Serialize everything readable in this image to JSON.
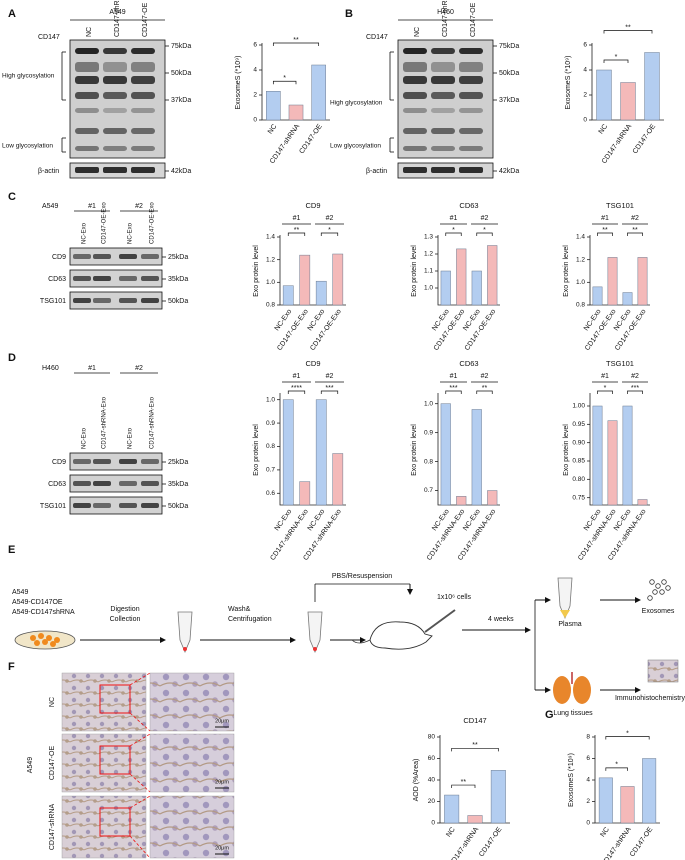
{
  "panel_labels": [
    "A",
    "B",
    "C",
    "D",
    "E",
    "F",
    "G"
  ],
  "blot_a": {
    "cell_line": "A549",
    "protein": "CD147",
    "lanes": [
      "NC",
      "CD147-shRNA",
      "CD147-OE"
    ],
    "markers": [
      "75kDa",
      "50kDa",
      "37kDa"
    ],
    "bands": [
      "High glycosylation",
      "Low glycosylation"
    ],
    "control": "β-actin",
    "control_marker": "42kDa"
  },
  "blot_b": {
    "cell_line": "H460",
    "protein": "CD147",
    "lanes": [
      "NC",
      "CD147-shRNA",
      "CD147-OE"
    ],
    "markers": [
      "75kDa",
      "50kDa",
      "37kDa"
    ],
    "bands": [
      "High glycosylation",
      "Low glycosylation"
    ],
    "control": "β-actin",
    "control_marker": "42kDa"
  },
  "blot_c": {
    "cell_line": "A549",
    "groups": [
      "#1",
      "#2"
    ],
    "lanes": [
      "NC-Exo",
      "CD147-OE-Exo",
      "NC-Exo",
      "CD147-OE-Exo"
    ],
    "rows": [
      {
        "protein": "CD9",
        "marker": "25kDa"
      },
      {
        "protein": "CD63",
        "marker": "35kDa"
      },
      {
        "protein": "TSG101",
        "marker": "50kDa"
      }
    ]
  },
  "blot_d": {
    "cell_line": "H460",
    "groups": [
      "#1",
      "#2"
    ],
    "lanes": [
      "NC-Exo",
      "CD147-shRNA-Exo",
      "NC-Exo",
      "CD147-shRNA-Exo"
    ],
    "rows": [
      {
        "protein": "CD9",
        "marker": "25kDa"
      },
      {
        "protein": "CD63",
        "marker": "35kDa"
      },
      {
        "protein": "TSG101",
        "marker": "50kDa"
      }
    ]
  },
  "schematic": {
    "cell_lines": [
      "A549",
      "A549-CD147OE",
      "A549-CD147shRNA"
    ],
    "steps": [
      [
        "Digestion",
        "Collection"
      ],
      [
        "Wash&",
        "Centrifugation"
      ],
      [
        "PBS/Resuspension"
      ],
      [
        "1x10⁶ cells"
      ],
      [
        "4 weeks"
      ]
    ],
    "samples": [
      "Plasma",
      "Lung tissues"
    ],
    "outputs": [
      "Exosomes",
      "Immunohistochemistry"
    ]
  },
  "ihc": {
    "cell_line": "A549",
    "groups": [
      "NC",
      "CD147-OE",
      "CD147-shRNA"
    ],
    "scale_bars": [
      "20μm",
      "20μm",
      "20μm"
    ]
  },
  "chart_data": [
    {
      "type": "bar",
      "ylabel": "ExosomeS (*10⁹)",
      "categories": [
        "NC",
        "CD147-shRNA",
        "CD147-OE"
      ],
      "values": [
        2.3,
        1.2,
        4.4
      ],
      "colors": [
        "#b3cdf0",
        "#f4b9b9",
        "#b3cdf0"
      ],
      "ylim": [
        0,
        6
      ],
      "yticks": [
        0,
        2,
        4,
        6
      ],
      "significance": [
        {
          "from": 0,
          "to": 1,
          "label": "*"
        },
        {
          "from": 0,
          "to": 2,
          "label": "**"
        }
      ]
    },
    {
      "type": "bar",
      "ylabel": "ExosomeS (*10⁹)",
      "categories": [
        "NC",
        "CD147-shRNA",
        "CD147-OE"
      ],
      "values": [
        4.0,
        3.0,
        5.4
      ],
      "colors": [
        "#b3cdf0",
        "#f4b9b9",
        "#b3cdf0"
      ],
      "ylim": [
        0,
        6
      ],
      "yticks": [
        0,
        2,
        4,
        6
      ],
      "significance": [
        {
          "from": 0,
          "to": 1,
          "label": "*"
        },
        {
          "from": 0,
          "to": 2,
          "label": "**"
        }
      ]
    },
    {
      "type": "bar",
      "title": "CD9",
      "ylabel": "Exo protein level",
      "groups": [
        "#1",
        "#2"
      ],
      "categories": [
        "NC-Exo",
        "CD147-OE-Exo",
        "NC-Exo",
        "CD147-OE-Exo"
      ],
      "values": [
        0.97,
        1.24,
        1.01,
        1.25
      ],
      "colors": [
        "#b3cdf0",
        "#f4b9b9",
        "#b3cdf0",
        "#f4b9b9"
      ],
      "ylim": [
        0.8,
        1.4
      ],
      "yticks": [
        0.8,
        {
          "value": 1,
          "label": "1.0"
        },
        1.2,
        1.4
      ],
      "significance": [
        {
          "from": 0,
          "to": 1,
          "label": "**"
        },
        {
          "from": 2,
          "to": 3,
          "label": "*"
        }
      ]
    },
    {
      "type": "bar",
      "title": "CD63",
      "ylabel": "Exo protein level",
      "groups": [
        "#1",
        "#2"
      ],
      "categories": [
        "NC-Exo",
        "CD147-OE-Exo",
        "NC-Exo",
        "CD147-OE-Exo"
      ],
      "values": [
        1.1,
        1.23,
        1.1,
        1.25
      ],
      "colors": [
        "#b3cdf0",
        "#f4b9b9",
        "#b3cdf0",
        "#f4b9b9"
      ],
      "ylim": [
        0.9,
        1.3
      ],
      "yticks": [
        {
          "value": 1,
          "label": "1.0"
        },
        1.1,
        1.2,
        1.3
      ],
      "significance": [
        {
          "from": 0,
          "to": 1,
          "label": "*"
        },
        {
          "from": 2,
          "to": 3,
          "label": "*"
        }
      ]
    },
    {
      "type": "bar",
      "title": "TSG101",
      "ylabel": "Exo protein level",
      "groups": [
        "#1",
        "#2"
      ],
      "categories": [
        "NC-Exo",
        "CD147-OE-Exo",
        "NC-Exo",
        "CD147-OE-Exo"
      ],
      "values": [
        0.96,
        1.22,
        0.91,
        1.22
      ],
      "colors": [
        "#b3cdf0",
        "#f4b9b9",
        "#b3cdf0",
        "#f4b9b9"
      ],
      "ylim": [
        0.8,
        1.4
      ],
      "yticks": [
        0.8,
        {
          "value": 1,
          "label": "1.0"
        },
        1.2,
        1.4
      ],
      "significance": [
        {
          "from": 0,
          "to": 1,
          "label": "**"
        },
        {
          "from": 2,
          "to": 3,
          "label": "**"
        }
      ]
    },
    {
      "type": "bar",
      "title": "CD9",
      "ylabel": "Exo protein level",
      "groups": [
        "#1",
        "#2"
      ],
      "categories": [
        "NC-Exo",
        "CD147-shRNA-Exo",
        "NC-Exo",
        "CD147-shRNA-Exo"
      ],
      "values": [
        1.0,
        0.65,
        1.0,
        0.77
      ],
      "colors": [
        "#b3cdf0",
        "#f4b9b9",
        "#b3cdf0",
        "#f4b9b9"
      ],
      "ylim": [
        0.55,
        1.02
      ],
      "yticks": [
        0.6,
        0.7,
        0.8,
        0.9,
        {
          "value": 1,
          "label": "1.0"
        }
      ],
      "significance": [
        {
          "from": 0,
          "to": 1,
          "label": "****"
        },
        {
          "from": 2,
          "to": 3,
          "label": "***"
        }
      ]
    },
    {
      "type": "bar",
      "title": "CD63",
      "ylabel": "Exo protein level",
      "groups": [
        "#1",
        "#2"
      ],
      "categories": [
        "NC-Exo",
        "CD147-shRNA-Exo",
        "NC-Exo",
        "CD147-shRNA-Exo"
      ],
      "values": [
        1.0,
        0.68,
        0.98,
        0.7
      ],
      "colors": [
        "#b3cdf0",
        "#f4b9b9",
        "#b3cdf0",
        "#f4b9b9"
      ],
      "ylim": [
        0.65,
        1.03
      ],
      "yticks": [
        0.7,
        0.8,
        0.9,
        {
          "value": 1,
          "label": "1.0"
        }
      ],
      "significance": [
        {
          "from": 0,
          "to": 1,
          "label": "***"
        },
        {
          "from": 2,
          "to": 3,
          "label": "**"
        }
      ]
    },
    {
      "type": "bar",
      "title": "TSG101",
      "ylabel": "Exo protein level",
      "groups": [
        "#1",
        "#2"
      ],
      "categories": [
        "NC-Exo",
        "CD147-shRNA-Exo",
        "NC-Exo",
        "CD147-shRNA-Exo"
      ],
      "values": [
        1.0,
        0.96,
        1.0,
        0.745
      ],
      "colors": [
        "#b3cdf0",
        "#f4b9b9",
        "#b3cdf0",
        "#f4b9b9"
      ],
      "ylim": [
        0.73,
        1.03
      ],
      "yticks": [
        0.75,
        {
          "value": 0.8,
          "label": "0.80"
        },
        0.85,
        {
          "value": 0.9,
          "label": "0.90"
        },
        0.95,
        {
          "value": 1,
          "label": "1.00"
        }
      ],
      "significance": [
        {
          "from": 0,
          "to": 1,
          "label": "*"
        },
        {
          "from": 2,
          "to": 3,
          "label": "***"
        }
      ]
    },
    {
      "type": "bar",
      "title": "CD147",
      "ylabel": "AOD (%Area)",
      "categories": [
        "NC",
        "CD147-shRNA",
        "CD147-OE"
      ],
      "values": [
        26,
        7,
        49
      ],
      "colors": [
        "#b3cdf0",
        "#f4b9b9",
        "#b3cdf0"
      ],
      "ylim": [
        0,
        80
      ],
      "yticks": [
        0,
        20,
        40,
        60,
        80
      ],
      "significance": [
        {
          "from": 0,
          "to": 1,
          "label": "**"
        },
        {
          "from": 0,
          "to": 2,
          "label": "**"
        }
      ]
    },
    {
      "type": "bar",
      "ylabel": "ExosomeS (*10⁹)",
      "categories": [
        "NC",
        "CD147-shRNA",
        "CD147-OE"
      ],
      "values": [
        4.2,
        3.4,
        6.0
      ],
      "colors": [
        "#b3cdf0",
        "#f4b9b9",
        "#b3cdf0"
      ],
      "ylim": [
        0,
        8
      ],
      "yticks": [
        0,
        2,
        4,
        6,
        8
      ],
      "significance": [
        {
          "from": 0,
          "to": 1,
          "label": "*"
        },
        {
          "from": 0,
          "to": 2,
          "label": "*"
        }
      ]
    }
  ]
}
